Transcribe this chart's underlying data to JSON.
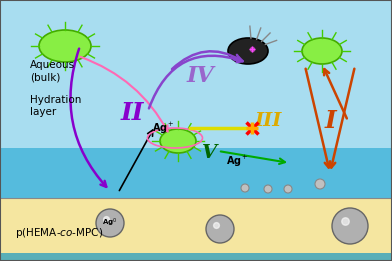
{
  "bg_aqueous_color": "#87CEEB",
  "bg_aqueous_dark": "#5BB8D4",
  "bg_hydration_color": "#40A8C8",
  "bg_film_color": "#F5E6A0",
  "bg_film_dark": "#E8D870",
  "border_color": "#333333",
  "title_text": "p(HEMA-co-MPC)",
  "label_aqueous": "Aqueous\n(bulk)",
  "label_hydration": "Hydration\nlayer",
  "label_ag0": "Ag°",
  "label_agplus1": "Ag⁺",
  "label_agplus2": "Ag⁺",
  "roman_I": "I",
  "roman_II": "II",
  "roman_III": "III",
  "roman_IV": "IV",
  "roman_V": "V",
  "color_I": "#CC4400",
  "color_II": "#8800CC",
  "color_III": "#DDAA00",
  "color_IV": "#8844CC",
  "color_V": "#006600",
  "color_pink": "#FF69B4",
  "color_arrow_black": "#111111",
  "color_arrow_green": "#00AA00",
  "color_yellow_line": "#DDDD00",
  "color_red_x": "#FF0000"
}
